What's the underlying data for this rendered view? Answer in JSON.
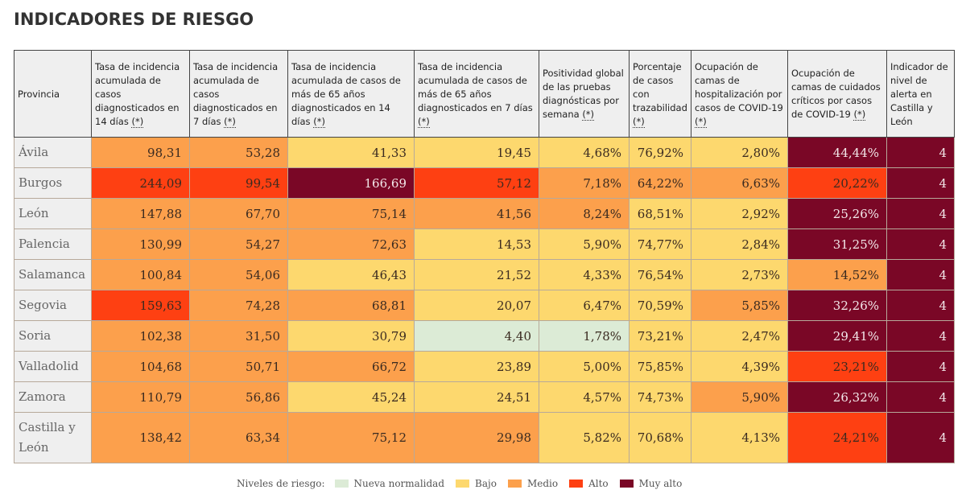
{
  "title": "INDICADORES DE RIESGO",
  "colors": {
    "nueva_normalidad": "#dcebd6",
    "bajo": "#fdd86e",
    "medio": "#fca04c",
    "alto": "#fe4012",
    "muy_alto": "#7a0726"
  },
  "table": {
    "headers": [
      {
        "text": "Provincia",
        "note": ""
      },
      {
        "text": "Tasa de incidencia acumulada de casos diagnosticados en 14 días ",
        "note": "(*)"
      },
      {
        "text": "Tasa de incidencia acumulada de casos diagnosticados en 7 días ",
        "note": "(*)"
      },
      {
        "text": "Tasa de incidencia acumulada de casos de más de 65 años diagnosticados en 14 días ",
        "note": "(*)"
      },
      {
        "text": "Tasa de incidencia acumulada de casos de más de 65 años diagnosticados en 7 días ",
        "note": "(*)"
      },
      {
        "text": "Positividad global de las pruebas diagnósticas por semana ",
        "note": "(*)"
      },
      {
        "text": "Porcentaje de casos con trazabilidad ",
        "note": "(*)"
      },
      {
        "text": "Ocupación de camas de hospitalización por casos de COVID-19 ",
        "note": "(*)"
      },
      {
        "text": "Ocupación de camas de cuidados críticos por casos de COVID-19 ",
        "note": "(*)"
      },
      {
        "text": "Indicador de nivel de alerta en Castilla y León",
        "note": ""
      }
    ],
    "rows": [
      {
        "provincia": "Ávila",
        "values": [
          "98,31",
          "53,28",
          "41,33",
          "19,45",
          "4,68%",
          "76,92%",
          "2,80%",
          "44,44%",
          "4"
        ],
        "levels": [
          "medio",
          "medio",
          "bajo",
          "bajo",
          "bajo",
          "bajo",
          "bajo",
          "muy",
          "muy"
        ]
      },
      {
        "provincia": "Burgos",
        "values": [
          "244,09",
          "99,54",
          "166,69",
          "57,12",
          "7,18%",
          "64,22%",
          "6,63%",
          "20,22%",
          "4"
        ],
        "levels": [
          "alto",
          "alto",
          "muy",
          "alto",
          "medio",
          "medio",
          "medio",
          "alto",
          "muy"
        ]
      },
      {
        "provincia": "León",
        "values": [
          "147,88",
          "67,70",
          "75,14",
          "41,56",
          "8,24%",
          "68,51%",
          "2,92%",
          "25,26%",
          "4"
        ],
        "levels": [
          "medio",
          "medio",
          "medio",
          "medio",
          "medio",
          "bajo",
          "bajo",
          "muy",
          "muy"
        ]
      },
      {
        "provincia": "Palencia",
        "values": [
          "130,99",
          "54,27",
          "72,63",
          "14,53",
          "5,90%",
          "74,77%",
          "2,84%",
          "31,25%",
          "4"
        ],
        "levels": [
          "medio",
          "medio",
          "medio",
          "bajo",
          "bajo",
          "bajo",
          "bajo",
          "muy",
          "muy"
        ]
      },
      {
        "provincia": "Salamanca",
        "values": [
          "100,84",
          "54,06",
          "46,43",
          "21,52",
          "4,33%",
          "76,54%",
          "2,73%",
          "14,52%",
          "4"
        ],
        "levels": [
          "medio",
          "medio",
          "bajo",
          "bajo",
          "bajo",
          "bajo",
          "bajo",
          "medio",
          "muy"
        ]
      },
      {
        "provincia": "Segovia",
        "values": [
          "159,63",
          "74,28",
          "68,81",
          "20,07",
          "6,47%",
          "70,59%",
          "5,85%",
          "32,26%",
          "4"
        ],
        "levels": [
          "alto",
          "medio",
          "medio",
          "bajo",
          "bajo",
          "bajo",
          "medio",
          "muy",
          "muy"
        ]
      },
      {
        "provincia": "Soria",
        "values": [
          "102,38",
          "31,50",
          "30,79",
          "4,40",
          "1,78%",
          "73,21%",
          "2,47%",
          "29,41%",
          "4"
        ],
        "levels": [
          "medio",
          "medio",
          "bajo",
          "nn",
          "nn",
          "bajo",
          "bajo",
          "muy",
          "muy"
        ]
      },
      {
        "provincia": "Valladolid",
        "values": [
          "104,68",
          "50,71",
          "66,72",
          "23,89",
          "5,00%",
          "75,85%",
          "4,39%",
          "23,21%",
          "4"
        ],
        "levels": [
          "medio",
          "medio",
          "medio",
          "bajo",
          "bajo",
          "bajo",
          "bajo",
          "alto",
          "muy"
        ]
      },
      {
        "provincia": "Zamora",
        "values": [
          "110,79",
          "56,86",
          "45,24",
          "24,51",
          "4,57%",
          "74,73%",
          "5,90%",
          "26,32%",
          "4"
        ],
        "levels": [
          "medio",
          "medio",
          "bajo",
          "bajo",
          "bajo",
          "bajo",
          "medio",
          "muy",
          "muy"
        ]
      },
      {
        "provincia": "Castilla y León",
        "values": [
          "138,42",
          "63,34",
          "75,12",
          "29,98",
          "5,82%",
          "70,68%",
          "4,13%",
          "24,21%",
          "4"
        ],
        "levels": [
          "medio",
          "medio",
          "medio",
          "medio",
          "bajo",
          "bajo",
          "bajo",
          "alto",
          "muy"
        ]
      }
    ]
  },
  "legend": {
    "label": "Niveles de riesgo:",
    "items": [
      {
        "label": "Nueva normalidad",
        "level": "nn"
      },
      {
        "label": "Bajo",
        "level": "bajo"
      },
      {
        "label": "Medio",
        "level": "medio"
      },
      {
        "label": "Alto",
        "level": "alto"
      },
      {
        "label": "Muy alto",
        "level": "muy"
      }
    ]
  }
}
